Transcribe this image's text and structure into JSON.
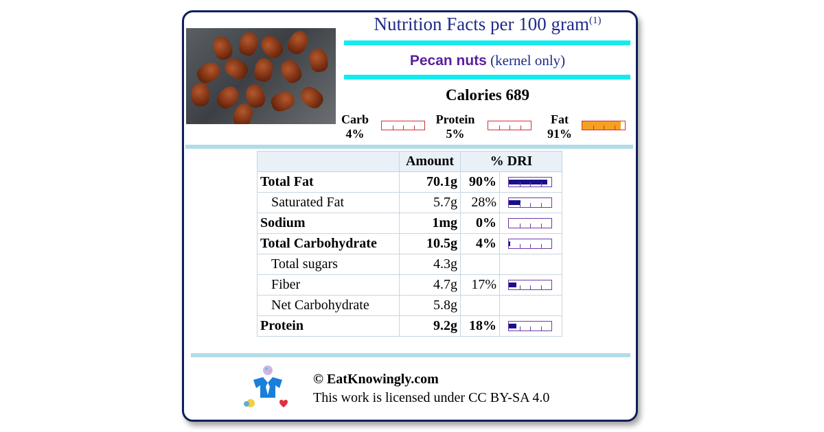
{
  "header": {
    "title": "Nutrition Facts per 100 gram",
    "footnote": "(1)"
  },
  "food": {
    "name": "Pecan nuts",
    "qualifier": "(kernel only)"
  },
  "calories": "Calories 689",
  "macros": [
    {
      "label": "Carb",
      "pct": "4%",
      "fraction": 0.04
    },
    {
      "label": "Protein",
      "pct": "5%",
      "fraction": 0.05
    },
    {
      "label": "Fat",
      "pct": "91%",
      "fraction": 0.91
    }
  ],
  "table": {
    "headers": {
      "amount": "Amount",
      "dri": "% DRI"
    },
    "rows": [
      {
        "name": "Total Fat",
        "amount": "70.1g",
        "dri": "90%",
        "fraction": 0.9,
        "bold": true
      },
      {
        "name": "Saturated Fat",
        "amount": "5.7g",
        "dri": "28%",
        "fraction": 0.28,
        "bold": false
      },
      {
        "name": "Sodium",
        "amount": "1mg",
        "dri": "0%",
        "fraction": 0.0,
        "bold": true
      },
      {
        "name": "Total Carbohydrate",
        "amount": "10.5g",
        "dri": "4%",
        "fraction": 0.04,
        "bold": true
      },
      {
        "name": "Total sugars",
        "amount": "4.3g",
        "dri": "",
        "fraction": null,
        "bold": false
      },
      {
        "name": "Fiber",
        "amount": "4.7g",
        "dri": "17%",
        "fraction": 0.17,
        "bold": false
      },
      {
        "name": "Net Carbohydrate",
        "amount": "5.8g",
        "dri": "",
        "fraction": null,
        "bold": false
      },
      {
        "name": "Protein",
        "amount": "9.2g",
        "dri": "18%",
        "fraction": 0.18,
        "bold": true
      }
    ]
  },
  "footer": {
    "copyright": "© EatKnowingly.com",
    "license": "This work is licensed under CC BY-SA 4.0"
  },
  "colors": {
    "border": "#0d1e5a",
    "title": "#1e2a8a",
    "food_name": "#5a1ea0",
    "cyan": "#13ecef",
    "separator": "#b2dcea",
    "fat_fill": "#f5a020",
    "dri_fill": "#1a0f8a"
  }
}
